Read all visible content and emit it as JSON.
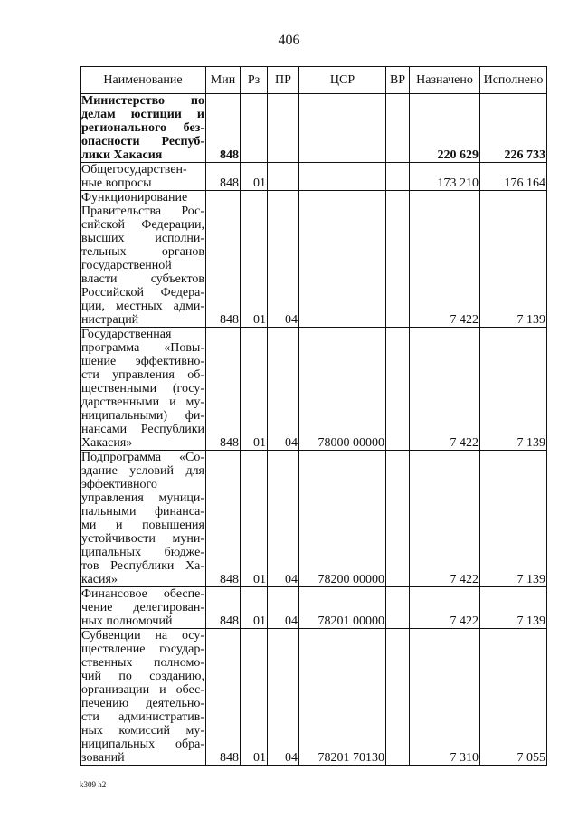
{
  "page_number": "406",
  "table": {
    "header": [
      "Наименование",
      "Мин",
      "Рз",
      "ПР",
      "ЦСР",
      "ВР",
      "Назначено",
      "Исполнено"
    ],
    "rows": [
      {
        "name": [
          "Министерство по",
          "делам юстиции и",
          "регионального без-",
          "опасности Респуб-",
          "лики Хакасия"
        ],
        "min": "848",
        "nazn": "220 629",
        "isp": "226 733",
        "bold": true
      },
      {
        "name": [
          "Общегосударствен-",
          "ные вопросы"
        ],
        "min": "848",
        "rz": "01",
        "nazn": "173 210",
        "isp": "176 164"
      },
      {
        "name": [
          "Функционирование",
          "Правительства Рос-",
          "сийской Федерации,",
          "высших исполни-",
          "тельных органов",
          "государственной",
          "власти субъектов",
          "Российской Федера-",
          "ции, местных адми-",
          "нистраций"
        ],
        "min": "848",
        "rz": "01",
        "pr": "04",
        "nazn": "7 422",
        "isp": "7 139"
      },
      {
        "name": [
          "Государственная",
          "программа «Повы-",
          "шение эффективно-",
          "сти управления об-",
          "щественными (госу-",
          "дарственными и му-",
          "ниципальными) фи-",
          "нансами Республики",
          "Хакасия»"
        ],
        "min": "848",
        "rz": "01",
        "pr": "04",
        "csr": "78000 00000",
        "nazn": "7 422",
        "isp": "7 139"
      },
      {
        "name": [
          "Подпрограмма «Со-",
          "здание условий для",
          "эффективного",
          "управления муници-",
          "пальными финанса-",
          "ми и повышения",
          "устойчивости муни-",
          "ципальных бюдже-",
          "тов Республики Ха-",
          "касия»"
        ],
        "min": "848",
        "rz": "01",
        "pr": "04",
        "csr": "78200 00000",
        "nazn": "7 422",
        "isp": "7 139"
      },
      {
        "name": [
          "Финансовое обеспе-",
          "чение делегирован-",
          "ных полномочий"
        ],
        "min": "848",
        "rz": "01",
        "pr": "04",
        "csr": "78201 00000",
        "nazn": "7 422",
        "isp": "7 139"
      },
      {
        "name": [
          "Субвенции на осу-",
          "ществление государ-",
          "ственных полномо-",
          "чий по созданию,",
          "организации и обес-",
          "печению деятельно-",
          "сти административ-",
          "ных комиссий му-",
          "ниципальных обра-",
          "зований"
        ],
        "min": "848",
        "rz": "01",
        "pr": "04",
        "csr": "78201 70130",
        "nazn": "7 310",
        "isp": "7 055"
      }
    ]
  },
  "footer": "k309 h2"
}
